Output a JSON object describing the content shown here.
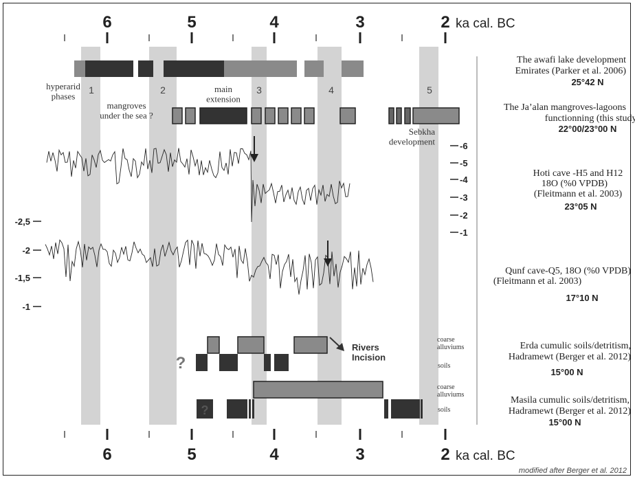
{
  "time_axis": {
    "major_labels": [
      "6",
      "5",
      "4",
      "3",
      "2"
    ],
    "unit_label": "ka cal. BC"
  },
  "phases": {
    "title": "hyperarid\nphases",
    "labels": [
      "1",
      "2",
      "3",
      "4",
      "5"
    ]
  },
  "annotations": {
    "mangroves_under_sea": "mangroves\nunder the sea ?",
    "main_extension": "main\nextension",
    "sebkha": "Sebkha\ndevelopment",
    "rivers_incision": "Rivers\nIncision",
    "question_mark": "?"
  },
  "records": {
    "awafi": {
      "line1": "The awafi lake development",
      "line2": "Emirates (Parker et al. 2006)",
      "lat": "25°42 N"
    },
    "jaalan": {
      "line1": "The Ja’alan mangroves-lagoons",
      "line2": "functionning (this study)",
      "lat": "22°00/23°00 N"
    },
    "hoti": {
      "line1": "Hoti cave -H5 and H12",
      "line2": "18O  (%0 VPDB)",
      "line3": "(Fleitmann et al. 2003)",
      "lat": "23°05 N"
    },
    "qunf": {
      "line1": "Qunf cave-Q5, 18O (%0 VPDB)",
      "line2": "(Fleitmann et al. 2003)",
      "lat": "17°10 N"
    },
    "erda": {
      "line1": "Erda cumulic soils/detritism,",
      "line2": "Hadramewt (Berger et al. 2012)",
      "lat": "15°00 N"
    },
    "masila": {
      "line1": "Masila cumulic soils/detritism,",
      "line2": "Hadramewt (Berger et al. 2012)",
      "lat": "15°00 N"
    }
  },
  "row_labels": {
    "coarse_alluviums": "coarse\nalluviums",
    "soils": "soils"
  },
  "hoti_axis_ticks": [
    "-6",
    "-5",
    "-4",
    "-3",
    "-2",
    "-1"
  ],
  "qunf_axis_ticks": [
    "-2,5",
    "-2",
    "-1,5",
    "-1"
  ],
  "footer": "modified after Berger et al. 2012",
  "colors": {
    "dark": "#333333",
    "medium": "#8a8a8a",
    "band": "#d3d3d3",
    "line": "#222222"
  }
}
